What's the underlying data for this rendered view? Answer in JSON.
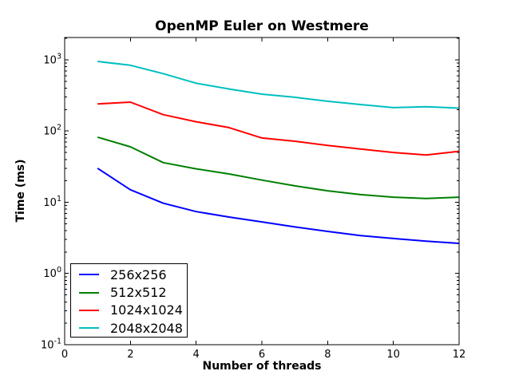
{
  "chart_data": {
    "type": "line",
    "title": "OpenMP Euler on Westmere",
    "xlabel": "Number of threads",
    "ylabel": "Time (ms)",
    "x": [
      1,
      2,
      3,
      4,
      5,
      6,
      7,
      8,
      9,
      10,
      11,
      12
    ],
    "series": [
      {
        "name": "256x256",
        "color": "#0000ff",
        "values": [
          30,
          15,
          9.7,
          7.4,
          6.2,
          5.3,
          4.5,
          3.9,
          3.4,
          3.1,
          2.85,
          2.65
        ]
      },
      {
        "name": "512x512",
        "color": "#007f00",
        "values": [
          82,
          60,
          36,
          29.5,
          25,
          20.5,
          17,
          14.5,
          12.8,
          11.8,
          11.3,
          11.8
        ]
      },
      {
        "name": "1024x1024",
        "color": "#ff0000",
        "values": [
          240,
          255,
          170,
          135,
          112,
          80,
          72,
          63,
          56,
          50,
          46,
          52
        ]
      },
      {
        "name": "2048x2048",
        "color": "#00bfbf",
        "values": [
          950,
          840,
          640,
          470,
          390,
          330,
          298,
          262,
          236,
          213,
          220,
          210
        ]
      }
    ],
    "xlim": [
      0,
      12
    ],
    "ylim": [
      0.1,
      2059
    ],
    "y_scale": "log",
    "x_ticks": [
      0,
      2,
      4,
      6,
      8,
      10,
      12
    ],
    "y_ticks": [
      {
        "base": "10",
        "exp": "-1"
      },
      {
        "base": "10",
        "exp": "0"
      },
      {
        "base": "10",
        "exp": "1"
      },
      {
        "base": "10",
        "exp": "2"
      },
      {
        "base": "10",
        "exp": "3"
      }
    ],
    "grid": false,
    "legend_position": "lower-left",
    "frame_color": "#000000",
    "background_color": "#ffffff",
    "line_width": 2
  }
}
